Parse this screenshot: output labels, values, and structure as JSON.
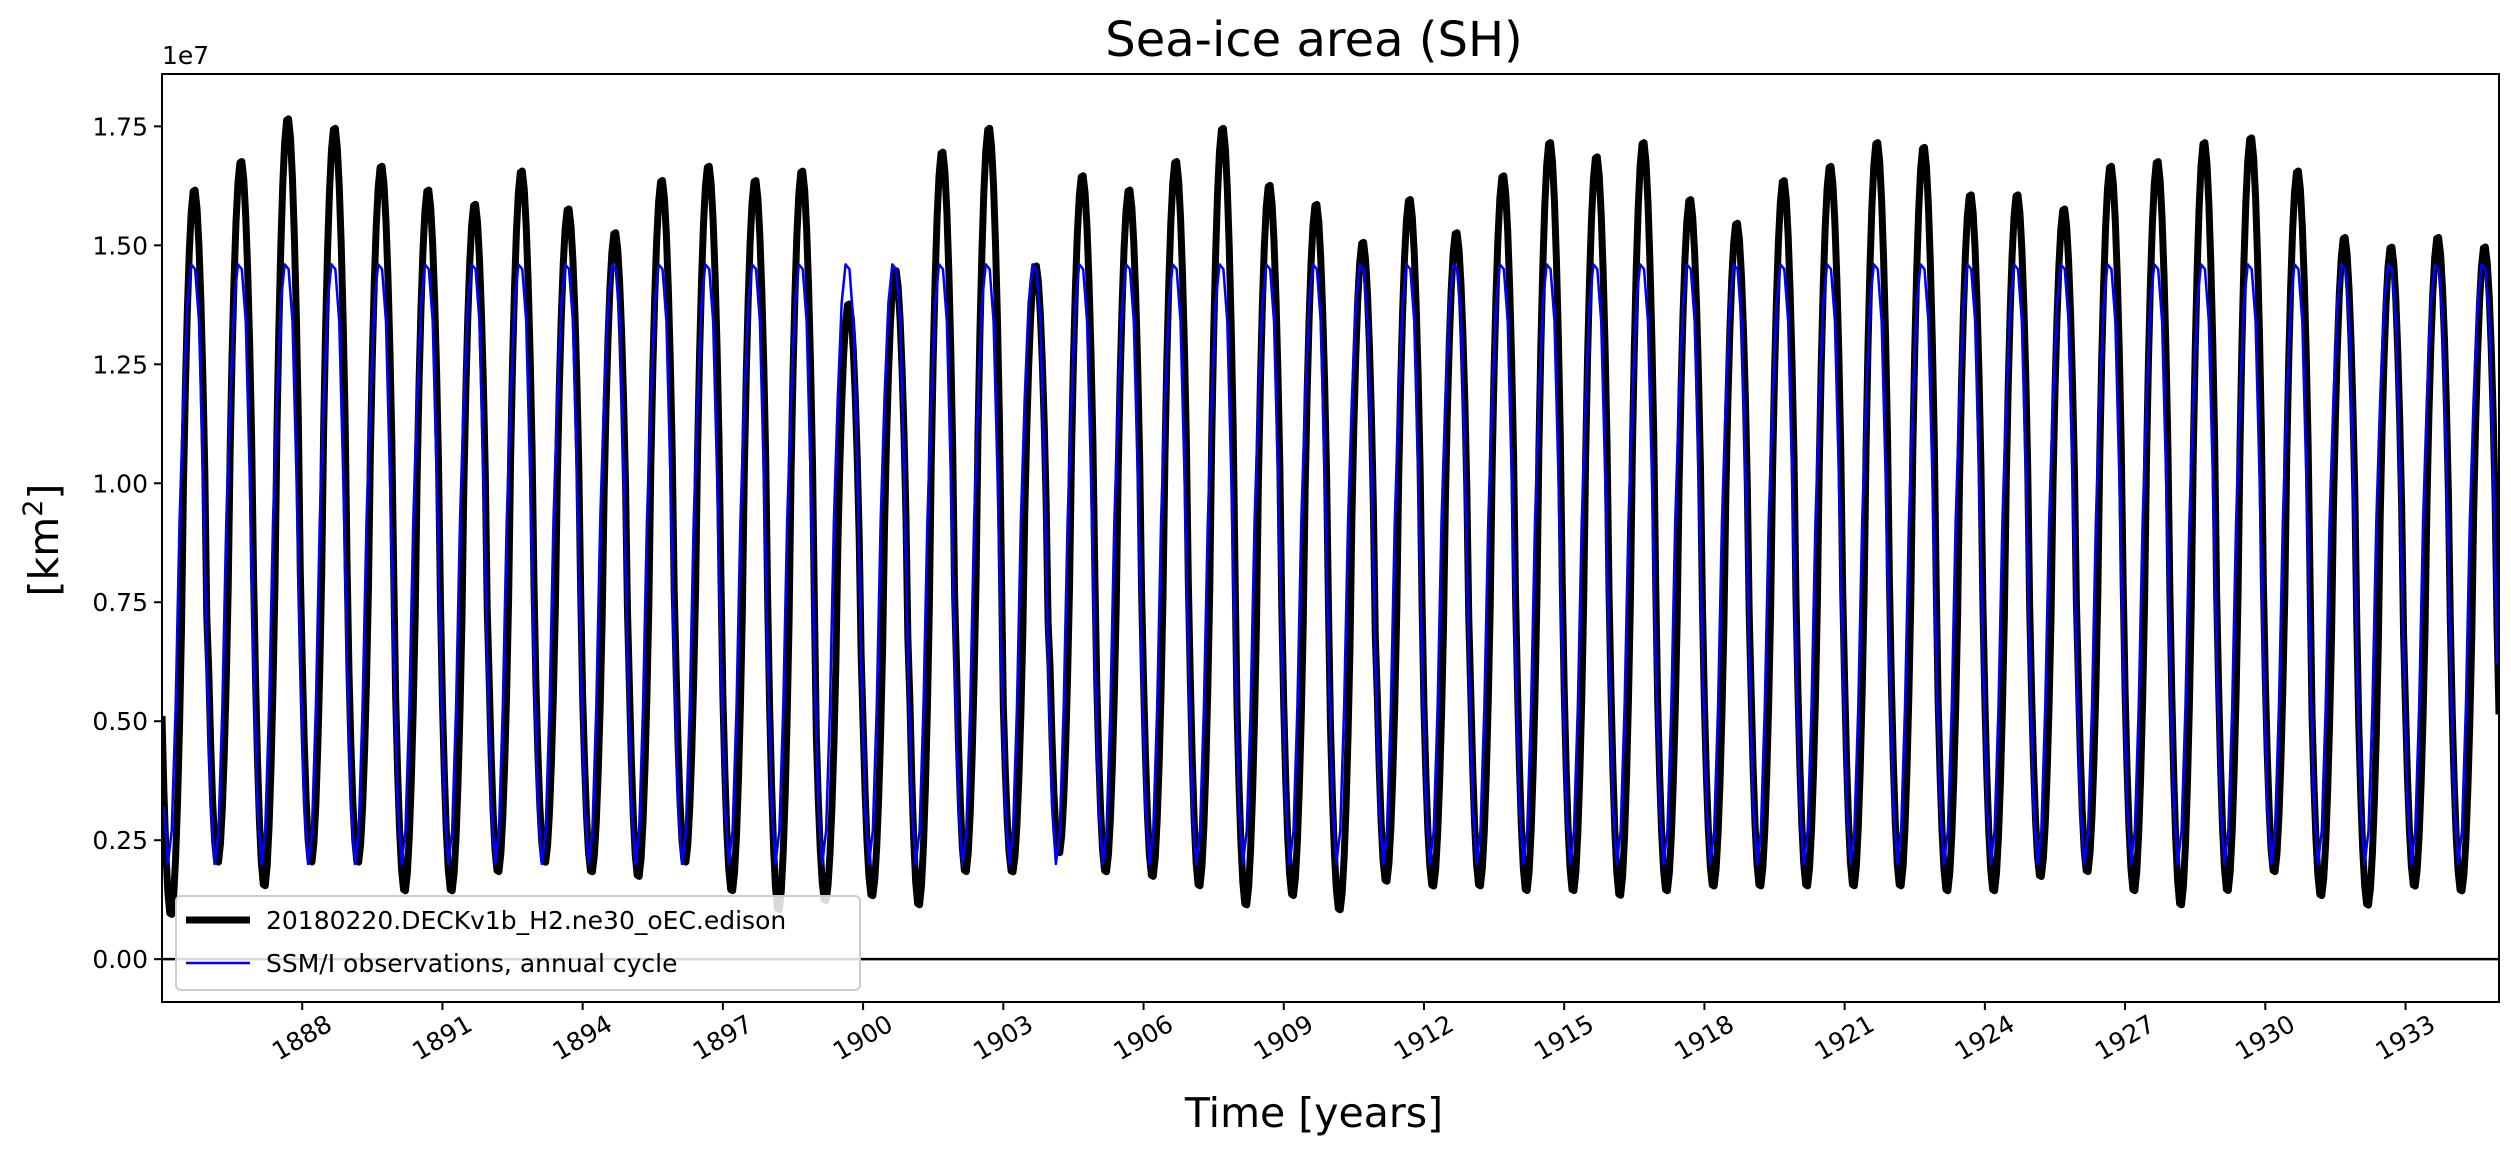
{
  "chart_data": {
    "type": "line",
    "title": "Sea-ice area (SH)",
    "xlabel": "Time [years]",
    "ylabel": "[km²]",
    "ylabel_base": "[km",
    "ylabel_sup": "2",
    "ylabel_close": "]",
    "y_offset_label": "1e7",
    "xlim": [
      1885.0,
      1935.0
    ],
    "ylim": [
      -0.09,
      1.86
    ],
    "y_multiplier": 10000000,
    "yticks": [
      0.0,
      0.25,
      0.5,
      0.75,
      1.0,
      1.25,
      1.5,
      1.75
    ],
    "ytick_labels": [
      "0.00",
      "0.25",
      "0.50",
      "0.75",
      "1.00",
      "1.25",
      "1.50",
      "1.75"
    ],
    "xticks": [
      1888,
      1891,
      1894,
      1897,
      1900,
      1903,
      1906,
      1909,
      1912,
      1915,
      1918,
      1921,
      1924,
      1927,
      1930,
      1933
    ],
    "xtick_labels": [
      "1888",
      "1891",
      "1894",
      "1897",
      "1900",
      "1903",
      "1906",
      "1909",
      "1912",
      "1915",
      "1918",
      "1921",
      "1924",
      "1927",
      "1930",
      "1933"
    ],
    "zero_line": 0.0,
    "legend_position": "lower-left",
    "grid": false,
    "series": [
      {
        "name": "20180220.DECKv1b_H2.ne30_oEC.edison",
        "color": "#000000",
        "annual_max": [
          1.62,
          1.68,
          1.77,
          1.75,
          1.67,
          1.62,
          1.59,
          1.66,
          1.58,
          1.53,
          1.64,
          1.67,
          1.64,
          1.66,
          1.38,
          1.45,
          1.7,
          1.75,
          1.46,
          1.65,
          1.62,
          1.68,
          1.75,
          1.63,
          1.59,
          1.51,
          1.6,
          1.53,
          1.65,
          1.72,
          1.69,
          1.72,
          1.6,
          1.55,
          1.64,
          1.67,
          1.72,
          1.71,
          1.61,
          1.61,
          1.58,
          1.67,
          1.68,
          1.72,
          1.73,
          1.66,
          1.52,
          1.5,
          1.52,
          1.5
        ],
        "annual_min": [
          0.09,
          0.2,
          0.15,
          0.2,
          0.2,
          0.14,
          0.14,
          0.18,
          0.2,
          0.18,
          0.17,
          0.2,
          0.14,
          0.1,
          0.12,
          0.13,
          0.11,
          0.18,
          0.18,
          0.22,
          0.18,
          0.17,
          0.15,
          0.11,
          0.13,
          0.1,
          0.16,
          0.15,
          0.15,
          0.14,
          0.14,
          0.13,
          0.14,
          0.15,
          0.15,
          0.15,
          0.15,
          0.15,
          0.14,
          0.14,
          0.17,
          0.18,
          0.14,
          0.11,
          0.14,
          0.18,
          0.13,
          0.11,
          0.15,
          0.14
        ]
      },
      {
        "name": "SSM/I observations, annual cycle",
        "color": "#0000ff",
        "monthly_climatology": [
          0.32,
          0.2,
          0.27,
          0.53,
          0.92,
          1.18,
          1.38,
          1.46,
          1.45,
          1.34,
          1.02,
          0.62
        ]
      }
    ]
  }
}
